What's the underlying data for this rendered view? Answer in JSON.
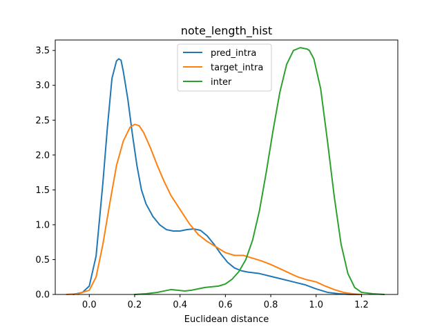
{
  "chart_data": {
    "type": "line",
    "title": "note_length_hist",
    "xlabel": "Euclidean distance",
    "ylabel": "",
    "xlim": [
      -0.15,
      1.36
    ],
    "ylim": [
      0,
      3.65
    ],
    "x_ticks": [
      0.0,
      0.2,
      0.4,
      0.6,
      0.8,
      1.0,
      1.2
    ],
    "x_tick_labels": [
      "0.0",
      "0.2",
      "0.4",
      "0.6",
      "0.8",
      "1.0",
      "1.2"
    ],
    "y_ticks": [
      0.0,
      0.5,
      1.0,
      1.5,
      2.0,
      2.5,
      3.0,
      3.5
    ],
    "y_tick_labels": [
      "0.0",
      "0.5",
      "1.0",
      "1.5",
      "2.0",
      "2.5",
      "3.0",
      "3.5"
    ],
    "grid": false,
    "legend_position": "top-center",
    "series": [
      {
        "name": "pred_intra",
        "color": "#1f77b4",
        "x": [
          -0.07,
          -0.03,
          0.0,
          0.03,
          0.06,
          0.08,
          0.1,
          0.12,
          0.13,
          0.14,
          0.15,
          0.17,
          0.19,
          0.21,
          0.23,
          0.25,
          0.28,
          0.31,
          0.34,
          0.37,
          0.4,
          0.43,
          0.46,
          0.49,
          0.52,
          0.55,
          0.58,
          0.61,
          0.64,
          0.67,
          0.7,
          0.75,
          0.8,
          0.85,
          0.9,
          0.95,
          1.0,
          1.05,
          1.1,
          1.15,
          1.2
        ],
        "y": [
          0.0,
          0.03,
          0.12,
          0.55,
          1.6,
          2.4,
          3.1,
          3.35,
          3.38,
          3.36,
          3.2,
          2.8,
          2.3,
          1.85,
          1.5,
          1.3,
          1.12,
          1.0,
          0.93,
          0.91,
          0.91,
          0.93,
          0.94,
          0.92,
          0.84,
          0.72,
          0.58,
          0.46,
          0.38,
          0.34,
          0.32,
          0.3,
          0.26,
          0.22,
          0.18,
          0.14,
          0.08,
          0.03,
          0.01,
          0.0,
          0.0
        ]
      },
      {
        "name": "target_intra",
        "color": "#ff7f0e",
        "x": [
          -0.1,
          -0.05,
          0.0,
          0.03,
          0.06,
          0.09,
          0.12,
          0.15,
          0.18,
          0.2,
          0.22,
          0.24,
          0.27,
          0.3,
          0.33,
          0.36,
          0.4,
          0.44,
          0.48,
          0.52,
          0.56,
          0.6,
          0.64,
          0.68,
          0.72,
          0.76,
          0.8,
          0.84,
          0.88,
          0.92,
          0.96,
          1.0,
          1.04,
          1.08,
          1.12,
          1.16,
          1.2
        ],
        "y": [
          0.0,
          0.01,
          0.06,
          0.25,
          0.72,
          1.3,
          1.85,
          2.2,
          2.4,
          2.44,
          2.42,
          2.32,
          2.1,
          1.85,
          1.62,
          1.42,
          1.22,
          1.02,
          0.86,
          0.76,
          0.68,
          0.6,
          0.56,
          0.56,
          0.52,
          0.48,
          0.43,
          0.37,
          0.31,
          0.25,
          0.21,
          0.18,
          0.12,
          0.07,
          0.03,
          0.01,
          0.0
        ]
      },
      {
        "name": "inter",
        "color": "#2ca02c",
        "x": [
          0.2,
          0.25,
          0.3,
          0.33,
          0.36,
          0.39,
          0.42,
          0.45,
          0.48,
          0.51,
          0.54,
          0.57,
          0.6,
          0.63,
          0.66,
          0.69,
          0.72,
          0.75,
          0.78,
          0.81,
          0.84,
          0.87,
          0.9,
          0.93,
          0.96,
          0.97,
          0.99,
          1.02,
          1.05,
          1.08,
          1.11,
          1.14,
          1.17,
          1.2,
          1.25,
          1.3
        ],
        "y": [
          0.0,
          0.01,
          0.03,
          0.05,
          0.07,
          0.06,
          0.05,
          0.06,
          0.08,
          0.1,
          0.11,
          0.12,
          0.15,
          0.22,
          0.33,
          0.5,
          0.78,
          1.2,
          1.75,
          2.35,
          2.9,
          3.3,
          3.5,
          3.54,
          3.52,
          3.5,
          3.38,
          2.95,
          2.2,
          1.4,
          0.72,
          0.3,
          0.1,
          0.03,
          0.01,
          0.0
        ]
      }
    ]
  }
}
